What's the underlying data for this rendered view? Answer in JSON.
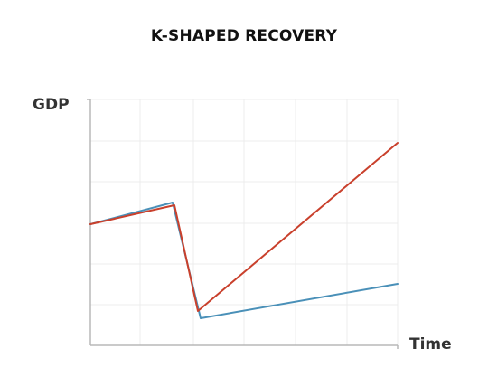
{
  "chart_data": {
    "type": "line",
    "title": "K-SHAPED RECOVERY",
    "xlabel": "Time",
    "ylabel": "GDP",
    "grid": true,
    "xlim": [
      0,
      10
    ],
    "ylim": [
      0,
      10
    ],
    "series": [
      {
        "color": "#c9402c",
        "points": [
          [
            0,
            3.5
          ],
          [
            2.7,
            4
          ],
          [
            3.5,
            2.7
          ],
          [
            10,
            4.8
          ]
        ]
      },
      {
        "color": "#4a90b8",
        "points": [
          [
            0,
            3.5
          ],
          [
            2.7,
            4.1
          ],
          [
            3.6,
            2.6
          ],
          [
            10,
            3.1
          ]
        ]
      }
    ],
    "series_data_note": ""
  }
}
